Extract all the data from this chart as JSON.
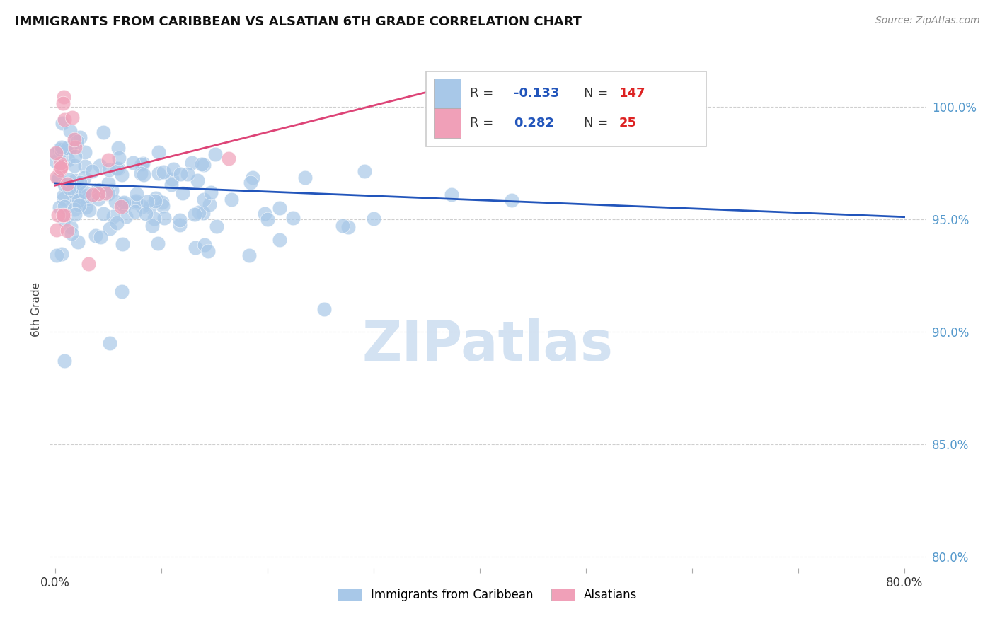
{
  "title": "IMMIGRANTS FROM CARIBBEAN VS ALSATIAN 6TH GRADE CORRELATION CHART",
  "source_text": "Source: ZipAtlas.com",
  "ylabel": "6th Grade",
  "watermark": "ZIPatlas",
  "xlim": [
    -0.005,
    0.82
  ],
  "ylim": [
    0.795,
    1.025
  ],
  "blue_color": "#a8c8e8",
  "pink_color": "#f0a0b8",
  "blue_line_color": "#2255bb",
  "pink_line_color": "#dd4477",
  "grid_color": "#bbbbbb",
  "right_tick_color": "#5599cc",
  "watermark_color": "#ccddf0",
  "legend_R_color": "#2255bb",
  "legend_N_color": "#dd2222",
  "blue_R": -0.133,
  "blue_N": 147,
  "pink_R": 0.282,
  "pink_N": 25,
  "blue_line_x0": 0.0,
  "blue_line_x1": 0.8,
  "blue_line_y0": 0.966,
  "blue_line_y1": 0.951,
  "pink_line_x0": 0.0,
  "pink_line_x1": 0.38,
  "pink_line_y0": 0.965,
  "pink_line_y1": 1.01
}
